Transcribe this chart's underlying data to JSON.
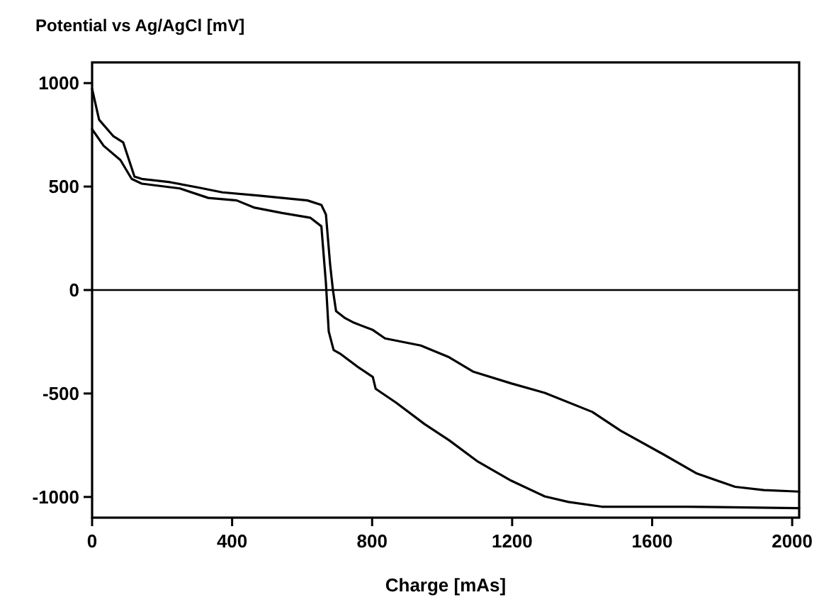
{
  "chart_data": {
    "type": "line",
    "ylabel": "Potential vs Ag/AgCl [mV]",
    "xlabel": "Charge [mAs]",
    "xlim": [
      0,
      2020
    ],
    "ylim": [
      -1100,
      1100
    ],
    "xticks": [
      0,
      400,
      800,
      1200,
      1600,
      2000
    ],
    "yticks": [
      -1000,
      -500,
      0,
      500,
      1000
    ],
    "grid": false,
    "marker": "none",
    "line_style": "solid",
    "ref_lines": [
      {
        "axis": "y",
        "value": 0,
        "color": "#000000"
      }
    ],
    "series": [
      {
        "color": "#000000",
        "x": [
          0,
          20,
          61,
          89,
          121,
          142,
          223,
          304,
          372,
          477,
          615,
          655,
          668,
          680,
          688,
          697,
          723,
          748,
          802,
          837,
          939,
          1020,
          1088,
          1197,
          1293,
          1429,
          1510,
          1633,
          1728,
          1837,
          1919,
          2020
        ],
        "values": [
          972,
          823,
          743,
          713,
          548,
          537,
          521,
          495,
          472,
          456,
          433,
          411,
          365,
          124,
          0,
          -102,
          -136,
          -158,
          -193,
          -234,
          -268,
          -325,
          -394,
          -451,
          -497,
          -589,
          -680,
          -795,
          -887,
          -951,
          -967,
          -974
        ]
      },
      {
        "color": "#000000",
        "x": [
          0,
          33,
          81,
          113,
          142,
          251,
          332,
          413,
          462,
          543,
          624,
          655,
          668,
          676,
          690,
          708,
          762,
          802,
          810,
          869,
          950,
          1020,
          1102,
          1197,
          1293,
          1361,
          1456,
          1701,
          2020
        ],
        "values": [
          777,
          697,
          628,
          537,
          514,
          491,
          445,
          433,
          399,
          372,
          349,
          308,
          33,
          -200,
          -290,
          -307,
          -375,
          -420,
          -477,
          -545,
          -648,
          -726,
          -829,
          -921,
          -997,
          -1024,
          -1047,
          -1047,
          -1054
        ]
      }
    ]
  }
}
